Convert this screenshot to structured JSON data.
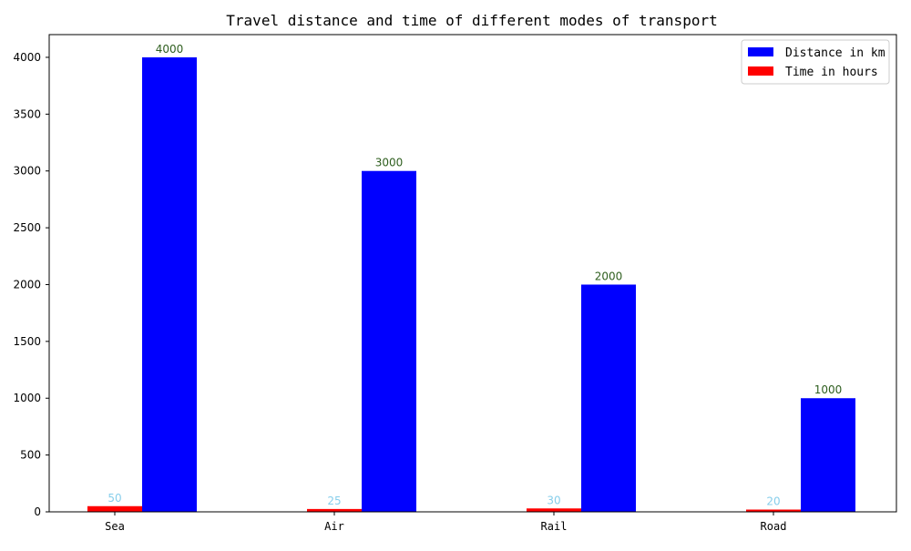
{
  "chart_data": {
    "type": "bar",
    "title": "Travel distance and time of different modes of transport",
    "xlabel": "",
    "ylabel": "",
    "categories": [
      "Sea",
      "Air",
      "Rail",
      "Road"
    ],
    "series": [
      {
        "name": "Time in hours",
        "values": [
          50,
          25,
          30,
          20
        ],
        "color": "#ff0000",
        "label_color": "#87ceeb"
      },
      {
        "name": "Distance in km",
        "values": [
          4000,
          3000,
          2000,
          1000
        ],
        "color": "#0000ff",
        "label_color": "#2e5e1e"
      }
    ],
    "legend_order": [
      "Distance in km",
      "Time in hours"
    ],
    "yticks": [
      0,
      500,
      1000,
      1500,
      2000,
      2500,
      3000,
      3500,
      4000
    ],
    "ylim": [
      0,
      4200
    ],
    "grid": false,
    "legend_position": "top-right"
  }
}
